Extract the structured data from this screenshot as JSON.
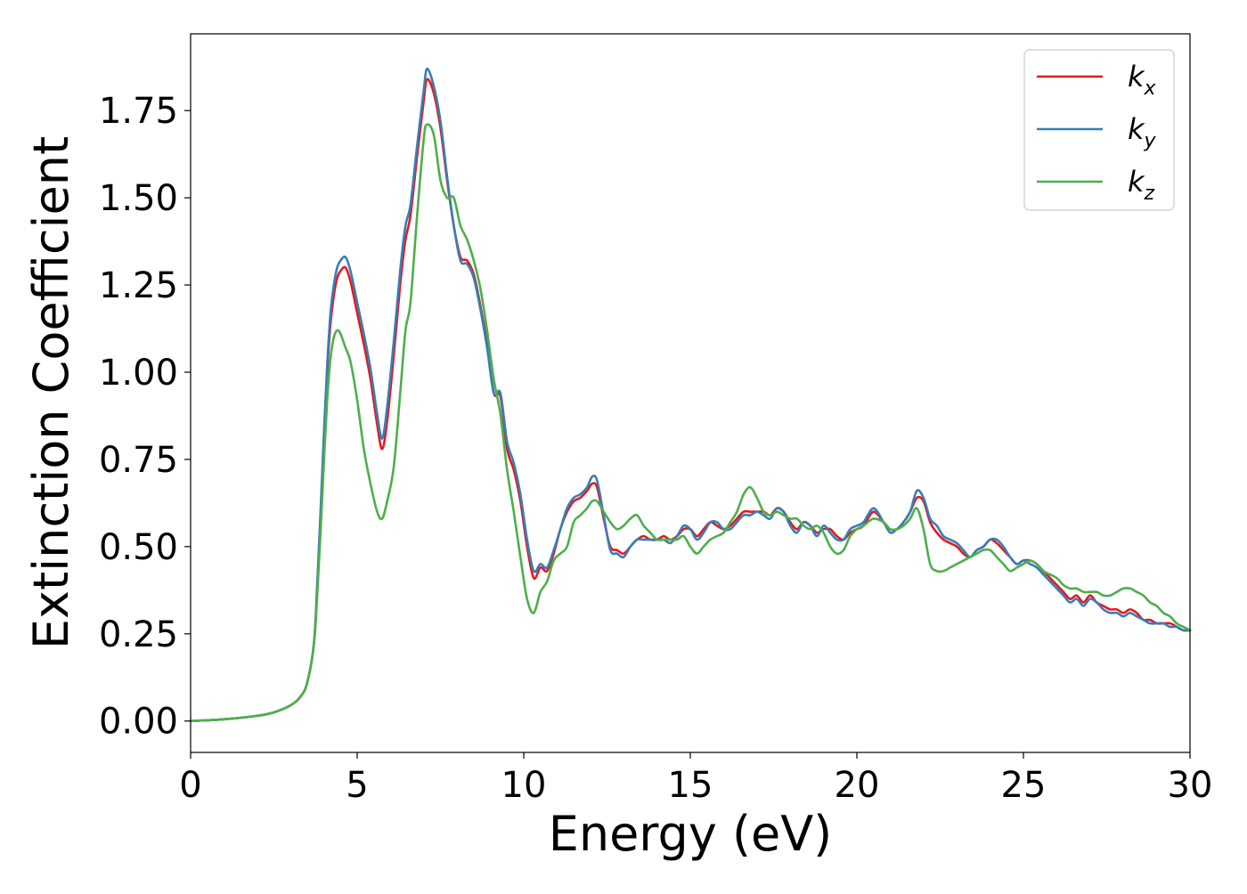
{
  "chart_data": {
    "type": "line",
    "xlabel": "Energy (eV)",
    "ylabel": "Extinction Coefficient",
    "xlim": [
      0,
      30
    ],
    "ylim": [
      -0.09,
      1.97
    ],
    "xticks": [
      0,
      5,
      10,
      15,
      20,
      25,
      30
    ],
    "xtick_labels": [
      "0",
      "5",
      "10",
      "15",
      "20",
      "25",
      "30"
    ],
    "yticks": [
      0,
      0.25,
      0.5,
      0.75,
      1.0,
      1.25,
      1.5,
      1.75
    ],
    "ytick_labels": [
      "0.00",
      "0.25",
      "0.50",
      "0.75",
      "1.00",
      "1.25",
      "1.50",
      "1.75"
    ],
    "grid": false,
    "legend_position": "upper right",
    "series": [
      {
        "name": "k_x",
        "label_base": "k",
        "label_sub": "x",
        "color": "#e41a1c",
        "x": [
          0,
          1,
          2,
          2.5,
          3,
          3.3,
          3.5,
          3.7,
          3.8,
          3.9,
          4.0,
          4.1,
          4.2,
          4.3,
          4.4,
          4.5,
          4.65,
          4.8,
          5.0,
          5.2,
          5.4,
          5.6,
          5.75,
          5.9,
          6.1,
          6.3,
          6.45,
          6.6,
          6.8,
          7.0,
          7.1,
          7.3,
          7.5,
          7.7,
          7.9,
          8.1,
          8.3,
          8.5,
          8.7,
          8.9,
          9.1,
          9.3,
          9.5,
          9.7,
          9.9,
          10.1,
          10.3,
          10.5,
          10.7,
          10.9,
          11.1,
          11.3,
          11.5,
          11.7,
          11.9,
          12.05,
          12.2,
          12.4,
          12.6,
          12.8,
          13.0,
          13.2,
          13.4,
          13.6,
          13.8,
          14.0,
          14.2,
          14.4,
          14.6,
          14.8,
          15.0,
          15.2,
          15.4,
          15.6,
          15.8,
          16.0,
          16.2,
          16.4,
          16.6,
          16.8,
          17.0,
          17.2,
          17.4,
          17.6,
          17.8,
          18.0,
          18.2,
          18.4,
          18.6,
          18.8,
          19.0,
          19.2,
          19.4,
          19.6,
          19.8,
          20.0,
          20.2,
          20.5,
          20.8,
          21.0,
          21.2,
          21.4,
          21.6,
          21.8,
          22.0,
          22.2,
          22.4,
          22.6,
          22.8,
          23.0,
          23.2,
          23.4,
          23.6,
          23.8,
          24.0,
          24.2,
          24.4,
          24.6,
          24.8,
          25.0,
          25.2,
          25.4,
          25.6,
          25.8,
          26.0,
          26.2,
          26.4,
          26.6,
          26.8,
          27.0,
          27.2,
          27.4,
          27.6,
          27.8,
          28.0,
          28.2,
          28.4,
          28.6,
          28.8,
          29.0,
          29.2,
          29.4,
          29.6,
          29.8,
          30.0
        ],
        "y": [
          0.0,
          0.005,
          0.015,
          0.025,
          0.045,
          0.07,
          0.11,
          0.22,
          0.38,
          0.58,
          0.8,
          1.0,
          1.14,
          1.22,
          1.27,
          1.29,
          1.3,
          1.26,
          1.17,
          1.08,
          0.98,
          0.85,
          0.78,
          0.86,
          1.05,
          1.26,
          1.38,
          1.45,
          1.62,
          1.78,
          1.84,
          1.8,
          1.7,
          1.55,
          1.42,
          1.33,
          1.32,
          1.28,
          1.19,
          1.08,
          0.94,
          0.93,
          0.78,
          0.72,
          0.63,
          0.5,
          0.41,
          0.44,
          0.43,
          0.48,
          0.55,
          0.6,
          0.63,
          0.64,
          0.66,
          0.68,
          0.67,
          0.58,
          0.5,
          0.49,
          0.48,
          0.5,
          0.52,
          0.53,
          0.52,
          0.52,
          0.53,
          0.52,
          0.53,
          0.55,
          0.55,
          0.53,
          0.55,
          0.57,
          0.56,
          0.55,
          0.56,
          0.58,
          0.6,
          0.6,
          0.6,
          0.6,
          0.59,
          0.61,
          0.6,
          0.57,
          0.55,
          0.57,
          0.56,
          0.54,
          0.55,
          0.55,
          0.53,
          0.52,
          0.54,
          0.55,
          0.56,
          0.6,
          0.57,
          0.55,
          0.55,
          0.57,
          0.6,
          0.64,
          0.63,
          0.57,
          0.54,
          0.52,
          0.51,
          0.5,
          0.48,
          0.47,
          0.49,
          0.5,
          0.52,
          0.51,
          0.49,
          0.47,
          0.45,
          0.46,
          0.46,
          0.45,
          0.43,
          0.41,
          0.39,
          0.37,
          0.35,
          0.36,
          0.34,
          0.36,
          0.34,
          0.33,
          0.32,
          0.32,
          0.31,
          0.32,
          0.31,
          0.29,
          0.29,
          0.28,
          0.28,
          0.28,
          0.27,
          0.26,
          0.26
        ]
      },
      {
        "name": "k_y",
        "label_base": "k",
        "label_sub": "y",
        "color": "#377eb8",
        "x": [
          0,
          1,
          2,
          2.5,
          3,
          3.3,
          3.5,
          3.7,
          3.8,
          3.9,
          4.0,
          4.1,
          4.2,
          4.3,
          4.4,
          4.5,
          4.65,
          4.8,
          5.0,
          5.2,
          5.4,
          5.6,
          5.75,
          5.9,
          6.1,
          6.3,
          6.45,
          6.6,
          6.8,
          7.0,
          7.1,
          7.3,
          7.5,
          7.7,
          7.9,
          8.1,
          8.3,
          8.5,
          8.7,
          8.9,
          9.1,
          9.3,
          9.5,
          9.7,
          9.9,
          10.1,
          10.3,
          10.5,
          10.7,
          10.9,
          11.1,
          11.3,
          11.5,
          11.7,
          11.9,
          12.05,
          12.2,
          12.4,
          12.6,
          12.8,
          13.0,
          13.2,
          13.4,
          13.6,
          13.8,
          14.0,
          14.2,
          14.4,
          14.6,
          14.8,
          15.0,
          15.2,
          15.4,
          15.6,
          15.8,
          16.0,
          16.2,
          16.4,
          16.6,
          16.8,
          17.0,
          17.2,
          17.4,
          17.6,
          17.8,
          18.0,
          18.2,
          18.4,
          18.6,
          18.8,
          19.0,
          19.2,
          19.4,
          19.6,
          19.8,
          20.0,
          20.2,
          20.5,
          20.8,
          21.0,
          21.2,
          21.4,
          21.6,
          21.8,
          22.0,
          22.2,
          22.4,
          22.6,
          22.8,
          23.0,
          23.2,
          23.4,
          23.6,
          23.8,
          24.0,
          24.2,
          24.4,
          24.6,
          24.8,
          25.0,
          25.2,
          25.4,
          25.6,
          25.8,
          26.0,
          26.2,
          26.4,
          26.6,
          26.8,
          27.0,
          27.2,
          27.4,
          27.6,
          27.8,
          28.0,
          28.2,
          28.4,
          28.6,
          28.8,
          29.0,
          29.2,
          29.4,
          29.6,
          29.8,
          30.0
        ],
        "y": [
          0.0,
          0.005,
          0.015,
          0.025,
          0.045,
          0.07,
          0.11,
          0.22,
          0.39,
          0.6,
          0.82,
          1.02,
          1.17,
          1.25,
          1.3,
          1.32,
          1.33,
          1.29,
          1.2,
          1.11,
          1.01,
          0.88,
          0.81,
          0.9,
          1.09,
          1.3,
          1.42,
          1.48,
          1.65,
          1.81,
          1.87,
          1.82,
          1.72,
          1.56,
          1.42,
          1.32,
          1.31,
          1.27,
          1.18,
          1.07,
          0.94,
          0.94,
          0.8,
          0.74,
          0.65,
          0.52,
          0.43,
          0.45,
          0.44,
          0.49,
          0.55,
          0.61,
          0.64,
          0.65,
          0.67,
          0.7,
          0.69,
          0.59,
          0.49,
          0.48,
          0.47,
          0.5,
          0.52,
          0.52,
          0.52,
          0.52,
          0.52,
          0.51,
          0.53,
          0.56,
          0.55,
          0.52,
          0.54,
          0.57,
          0.57,
          0.55,
          0.55,
          0.57,
          0.59,
          0.59,
          0.6,
          0.59,
          0.58,
          0.61,
          0.6,
          0.56,
          0.54,
          0.57,
          0.56,
          0.53,
          0.56,
          0.54,
          0.52,
          0.52,
          0.55,
          0.56,
          0.57,
          0.61,
          0.57,
          0.54,
          0.55,
          0.57,
          0.6,
          0.66,
          0.64,
          0.58,
          0.56,
          0.53,
          0.52,
          0.51,
          0.49,
          0.47,
          0.49,
          0.5,
          0.52,
          0.52,
          0.5,
          0.47,
          0.45,
          0.46,
          0.45,
          0.44,
          0.42,
          0.4,
          0.38,
          0.36,
          0.34,
          0.35,
          0.33,
          0.35,
          0.34,
          0.32,
          0.31,
          0.31,
          0.3,
          0.31,
          0.3,
          0.29,
          0.28,
          0.28,
          0.28,
          0.27,
          0.27,
          0.26,
          0.26
        ]
      },
      {
        "name": "k_z",
        "label_base": "k",
        "label_sub": "z",
        "color": "#4daf4a",
        "x": [
          0,
          1,
          2,
          2.5,
          3,
          3.3,
          3.5,
          3.7,
          3.8,
          3.9,
          4.0,
          4.1,
          4.2,
          4.3,
          4.4,
          4.5,
          4.65,
          4.8,
          5.0,
          5.2,
          5.4,
          5.6,
          5.75,
          5.9,
          6.1,
          6.3,
          6.45,
          6.6,
          6.8,
          7.0,
          7.1,
          7.3,
          7.5,
          7.7,
          7.9,
          8.1,
          8.3,
          8.5,
          8.7,
          8.9,
          9.1,
          9.3,
          9.5,
          9.7,
          9.9,
          10.1,
          10.3,
          10.5,
          10.7,
          10.9,
          11.1,
          11.3,
          11.5,
          11.7,
          11.9,
          12.05,
          12.2,
          12.4,
          12.6,
          12.8,
          13.0,
          13.2,
          13.4,
          13.6,
          13.8,
          14.0,
          14.2,
          14.4,
          14.6,
          14.8,
          15.0,
          15.2,
          15.4,
          15.6,
          15.8,
          16.0,
          16.2,
          16.4,
          16.6,
          16.8,
          17.0,
          17.2,
          17.4,
          17.6,
          17.8,
          18.0,
          18.2,
          18.4,
          18.6,
          18.8,
          19.0,
          19.2,
          19.4,
          19.6,
          19.8,
          20.0,
          20.2,
          20.5,
          20.8,
          21.0,
          21.2,
          21.4,
          21.6,
          21.8,
          22.0,
          22.2,
          22.4,
          22.6,
          22.8,
          23.0,
          23.2,
          23.4,
          23.6,
          23.8,
          24.0,
          24.2,
          24.4,
          24.6,
          24.8,
          25.0,
          25.2,
          25.4,
          25.6,
          25.8,
          26.0,
          26.2,
          26.4,
          26.6,
          26.8,
          27.0,
          27.2,
          27.4,
          27.6,
          27.8,
          28.0,
          28.2,
          28.4,
          28.6,
          28.8,
          29.0,
          29.2,
          29.4,
          29.6,
          29.8,
          30.0
        ],
        "y": [
          0.0,
          0.005,
          0.015,
          0.025,
          0.045,
          0.07,
          0.11,
          0.22,
          0.36,
          0.54,
          0.74,
          0.92,
          1.04,
          1.1,
          1.12,
          1.11,
          1.07,
          1.03,
          0.92,
          0.78,
          0.68,
          0.6,
          0.58,
          0.63,
          0.73,
          0.95,
          1.12,
          1.2,
          1.45,
          1.67,
          1.71,
          1.68,
          1.55,
          1.5,
          1.5,
          1.42,
          1.38,
          1.32,
          1.24,
          1.12,
          0.98,
          0.88,
          0.72,
          0.6,
          0.47,
          0.35,
          0.31,
          0.37,
          0.4,
          0.46,
          0.48,
          0.5,
          0.57,
          0.59,
          0.61,
          0.63,
          0.63,
          0.6,
          0.57,
          0.55,
          0.56,
          0.58,
          0.59,
          0.56,
          0.54,
          0.52,
          0.52,
          0.52,
          0.52,
          0.53,
          0.5,
          0.48,
          0.5,
          0.52,
          0.53,
          0.54,
          0.57,
          0.6,
          0.65,
          0.67,
          0.64,
          0.6,
          0.59,
          0.6,
          0.59,
          0.58,
          0.58,
          0.56,
          0.55,
          0.56,
          0.54,
          0.5,
          0.48,
          0.49,
          0.53,
          0.55,
          0.56,
          0.58,
          0.57,
          0.55,
          0.55,
          0.56,
          0.58,
          0.61,
          0.55,
          0.45,
          0.43,
          0.43,
          0.44,
          0.45,
          0.46,
          0.47,
          0.48,
          0.49,
          0.49,
          0.47,
          0.45,
          0.43,
          0.44,
          0.45,
          0.46,
          0.45,
          0.43,
          0.42,
          0.41,
          0.39,
          0.38,
          0.38,
          0.37,
          0.37,
          0.37,
          0.36,
          0.36,
          0.37,
          0.38,
          0.38,
          0.37,
          0.36,
          0.34,
          0.33,
          0.31,
          0.3,
          0.28,
          0.27,
          0.26
        ]
      }
    ]
  }
}
